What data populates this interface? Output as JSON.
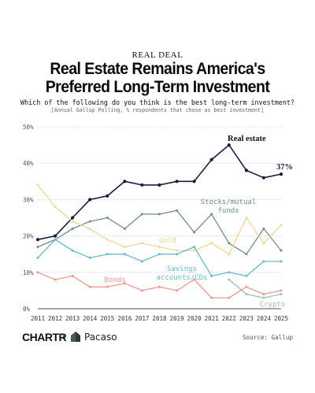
{
  "header": {
    "kicker": "REAL DEAL",
    "title_line1": "Real Estate Remains America's",
    "title_line2": "Preferred Long-Term Investment",
    "subtitle": "Which of the following do you think is the best long-term investment?",
    "note": "[Annual Gallup Polling, % respondents that chose as best investment]"
  },
  "footer": {
    "logo": "CHARTR",
    "separator": "X",
    "partner": "Pacaso",
    "source": "Source: Gallup"
  },
  "chart_data": {
    "type": "line",
    "title": "",
    "xlabel": "",
    "ylabel": "",
    "x": [
      2011,
      2012,
      2013,
      2014,
      2015,
      2016,
      2017,
      2018,
      2019,
      2020,
      2021,
      2022,
      2023,
      2024,
      2025
    ],
    "x_tick_labels": [
      "2011",
      "2012",
      "2013",
      "2014",
      "2015",
      "2016",
      "2017",
      "2018",
      "2019",
      "2020",
      "2021",
      "2022",
      "2023",
      "2024",
      "2025"
    ],
    "ylim": [
      0,
      50
    ],
    "y_ticks": [
      0,
      10,
      20,
      30,
      40,
      50
    ],
    "y_tick_labels": [
      "0%",
      "10%",
      "20%",
      "30%",
      "40%",
      "50%"
    ],
    "grid": true,
    "legend": "direct labels on lines",
    "series": [
      {
        "name": "Real estate",
        "color": "#1c1c3c",
        "values": [
          19,
          20,
          25,
          30,
          31,
          35,
          34,
          34,
          35,
          35,
          41,
          45,
          38,
          36,
          37
        ]
      },
      {
        "name": "Stocks/mutual funds",
        "color": "#6f8f82",
        "values": [
          17,
          19,
          22,
          24,
          25,
          22,
          26,
          26,
          27,
          21,
          26,
          18,
          15,
          22,
          16
        ]
      },
      {
        "name": "Gold",
        "color": "#efd69a",
        "values": [
          34,
          28,
          24,
          22,
          19,
          17,
          18,
          17,
          16,
          16,
          18,
          15,
          25,
          18,
          23
        ]
      },
      {
        "name": "Savings accounts/CDs",
        "color": "#67b8ca",
        "values": [
          14,
          19,
          16,
          14,
          15,
          15,
          13,
          15,
          15,
          17,
          9,
          10,
          9,
          13,
          13
        ]
      },
      {
        "name": "Bonds",
        "color": "#e89a8e",
        "values": [
          10,
          8,
          9,
          6,
          6,
          7,
          5,
          6,
          5,
          8,
          3,
          3,
          6,
          4,
          5
        ]
      },
      {
        "name": "Crypto",
        "color": "#9cc0b0",
        "values": [
          null,
          null,
          null,
          null,
          null,
          null,
          null,
          null,
          null,
          null,
          null,
          8,
          4,
          3,
          4
        ]
      }
    ],
    "annotations": [
      {
        "text": "Real estate",
        "series": "Real estate"
      },
      {
        "text": "37%",
        "series": "Real estate"
      },
      {
        "text": "Stocks/mutual",
        "series": "Stocks/mutual funds"
      },
      {
        "text": "funds",
        "series": "Stocks/mutual funds"
      },
      {
        "text": "Gold",
        "series": "Gold"
      },
      {
        "text": "Savings",
        "series": "Savings accounts/CDs"
      },
      {
        "text": "accounts/CDs",
        "series": "Savings accounts/CDs"
      },
      {
        "text": "Bonds",
        "series": "Bonds"
      },
      {
        "text": "Crypto",
        "series": "Crypto"
      }
    ]
  }
}
